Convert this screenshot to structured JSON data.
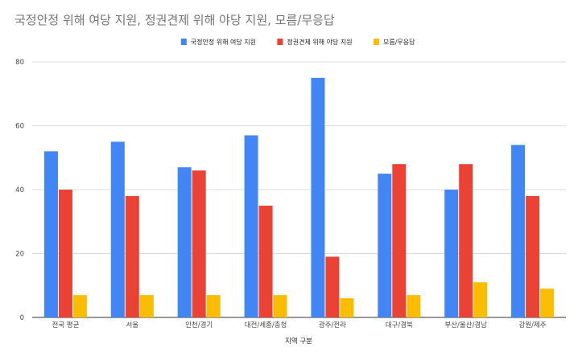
{
  "chart_data": {
    "type": "bar",
    "title": "국정안정 위해 여당 지원, 정권견제 위해 야당 지원, 모름/무응답",
    "xlabel": "지역 구분",
    "ylabel": "",
    "ylim": [
      0,
      80
    ],
    "yticks": [
      0,
      20,
      40,
      60,
      80
    ],
    "grid": true,
    "legend_position": "top",
    "categories": [
      "전국 평균",
      "서울",
      "인천/경기",
      "대전/세종/충청",
      "광주/전라",
      "대구/경북",
      "부산/울산/경남",
      "강원/제주"
    ],
    "series": [
      {
        "name": "국정안정 위해 여당 지원",
        "color": "#4285F4",
        "values": [
          52,
          55,
          47,
          57,
          75,
          45,
          40,
          54
        ]
      },
      {
        "name": "정권견제 위해 야당 지원",
        "color": "#EA4335",
        "values": [
          40,
          38,
          46,
          35,
          19,
          48,
          48,
          38
        ]
      },
      {
        "name": "모름/무응답",
        "color": "#FBBC04",
        "values": [
          7,
          7,
          7,
          7,
          6,
          7,
          11,
          9
        ]
      }
    ]
  }
}
